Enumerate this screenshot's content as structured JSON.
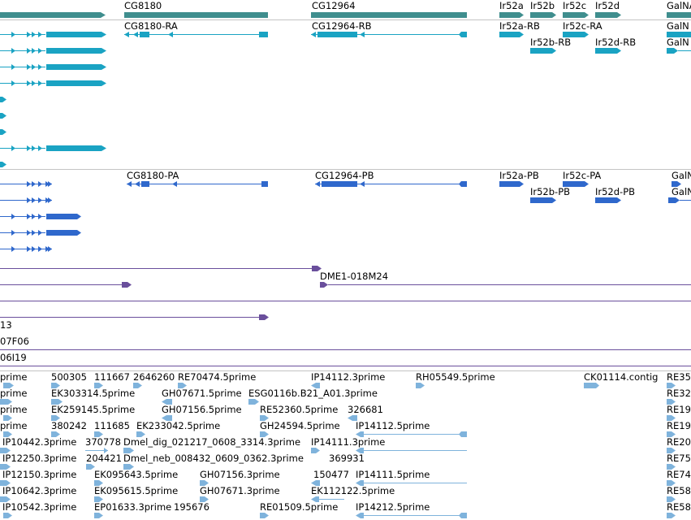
{
  "colors": {
    "gene": "#3f8e8e",
    "mrna_track1": "#1aa3c3",
    "mrna_track2": "#2f68cc",
    "clone": "#6a4f9c",
    "est": "#7fb3dc",
    "divider": "#c4c4c4"
  },
  "labels": {
    "gene_cg8180": "CG8180",
    "gene_cg12964": "CG12964",
    "gene_ir52a": "Ir52a",
    "gene_ir52b": "Ir52b",
    "gene_ir52c": "Ir52c",
    "gene_ir52d": "Ir52d",
    "gene_galna": "GalNA",
    "tx_cg8180_ra": "CG8180-RA",
    "tx_cg12964_rb": "CG12964-RB",
    "tx_ir52a_rb": "Ir52a-RB",
    "tx_ir52c_ra": "Ir52c-RA",
    "tx_galn_1": "GalN",
    "tx_ir52b_rb": "Ir52b-RB",
    "tx_ir52d_rb": "Ir52d-RB",
    "tx_galn_2": "GalN",
    "pa_cg8180_pa": "CG8180-PA",
    "pa_cg12964_pb": "CG12964-PB",
    "pa_ir52a_pb": "Ir52a-PB",
    "pa_ir52c_pa": "Ir52c-PA",
    "pa_galn_1": "GalN",
    "pa_ir52b_pb": "Ir52b-PB",
    "pa_ir52d_pb": "Ir52d-PB",
    "pa_galn_2": "GalN",
    "clone_dme1": "DME1-018M24",
    "clone_13": "13",
    "clone_07f06": "07F06",
    "clone_06i19": "06I19",
    "e_r1_a": "prime",
    "e_r1_b": "500305",
    "e_r1_c": "111667",
    "e_r1_d": "2646260",
    "e_r1_e": "RE70474.5prime",
    "e_r1_f": "IP14112.3prime",
    "e_r1_g": "RH05549.5prime",
    "e_r1_h": "CK01114.contig",
    "e_r1_i": "RE35",
    "e_r2_a": "prime",
    "e_r2_b": "EK303314.5prime",
    "e_r2_c": "GH07671.5prime",
    "e_r2_d": "ESG0116b.B21_A01.3prime",
    "e_r2_e": "RE32",
    "e_r3_a": "prime",
    "e_r3_b": "EK259145.5prime",
    "e_r3_c": "GH07156.5prime",
    "e_r3_d": "RE52360.5prime",
    "e_r3_e": "326681",
    "e_r3_f": "RE19",
    "e_r4_a": "prime",
    "e_r4_b": "380242",
    "e_r4_c": "111685",
    "e_r4_d": "EK233042.5prime",
    "e_r4_e": "GH24594.5prime",
    "e_r4_f": "IP14112.5prime",
    "e_r4_g": "RE19",
    "e_r5_a": "IP10442.3prime",
    "e_r5_b": "370778",
    "e_r5_c": "Dmel_dig_021217_0608_3314.3prime",
    "e_r5_d": "IP14111.3prime",
    "e_r5_e": "RE20",
    "e_r6_a": "IP12250.3prime",
    "e_r6_b": "204421",
    "e_r6_c": "Dmel_neb_008432_0609_0362.3prime",
    "e_r6_d": "369931",
    "e_r6_e": "RE75",
    "e_r7_a": "IP12150.3prime",
    "e_r7_b": "EK095643.5prime",
    "e_r7_c": "GH07156.3prime",
    "e_r7_d": "150477",
    "e_r7_e": "IP14111.5prime",
    "e_r7_f": "RE74",
    "e_r8_a": "IP10642.3prime",
    "e_r8_b": "EK095615.5prime",
    "e_r8_c": "GH07671.3prime",
    "e_r8_d": "EK112122.5prime",
    "e_r8_e": "RE58",
    "e_r9_a": "IP10542.3prime",
    "e_r9_b": "EP01633.3prime",
    "e_r9_c": "195676",
    "e_r9_d": "RE01509.5prime",
    "e_r9_e": "IP14212.5prime",
    "e_r9_f": "RE58"
  }
}
